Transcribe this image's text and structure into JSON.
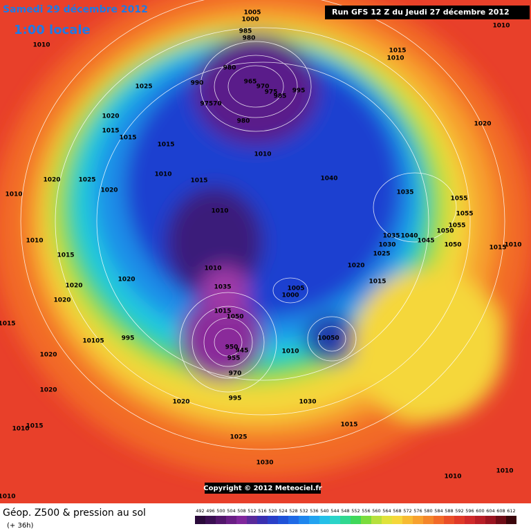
{
  "header": {
    "date": "Samedi 29 décembre 2012",
    "time": "1:00 locale",
    "run": "Run GFS 12 Z du Jeudi 27 décembre 2012"
  },
  "copyright": "Copyright © 2012 Meteociel.fr",
  "footer": {
    "title": "Géop. Z500 & pression au sol",
    "lead": "(+ 36h)"
  },
  "colorbar": {
    "labels": [
      "492",
      "496",
      "500",
      "504",
      "508",
      "512",
      "516",
      "520",
      "524",
      "528",
      "532",
      "536",
      "540",
      "544",
      "548",
      "552",
      "556",
      "560",
      "564",
      "568",
      "572",
      "576",
      "580",
      "584",
      "588",
      "592",
      "596",
      "600",
      "604",
      "608",
      "612"
    ]
  },
  "isobar_labels": [
    "1005",
    "1000",
    "985",
    "980",
    "980",
    "990",
    "965",
    "970",
    "975",
    "985",
    "995",
    "97570",
    "980",
    "1010",
    "1025",
    "1020",
    "1015",
    "1015",
    "1015",
    "1010",
    "1010",
    "1015",
    "1020",
    "1025",
    "1020",
    "1040",
    "1035",
    "1010",
    "1010",
    "1055",
    "1055",
    "1055",
    "1050",
    "1035",
    "1040",
    "1045",
    "1050",
    "1030",
    "1025",
    "1015",
    "1010",
    "1010",
    "1015",
    "1020",
    "1010",
    "1020",
    "1020",
    "1035",
    "1015",
    "1005",
    "1000",
    "1020",
    "1015",
    "1050",
    "1015",
    "10050",
    "10105",
    "995",
    "950",
    "945",
    "955",
    "1010",
    "970",
    "1020",
    "1020",
    "995",
    "1020",
    "1030",
    "1015",
    "1015",
    "1025",
    "1030",
    "1010",
    "1010",
    "1015",
    "1010",
    "1020",
    "1010",
    "1010",
    "1010"
  ]
}
